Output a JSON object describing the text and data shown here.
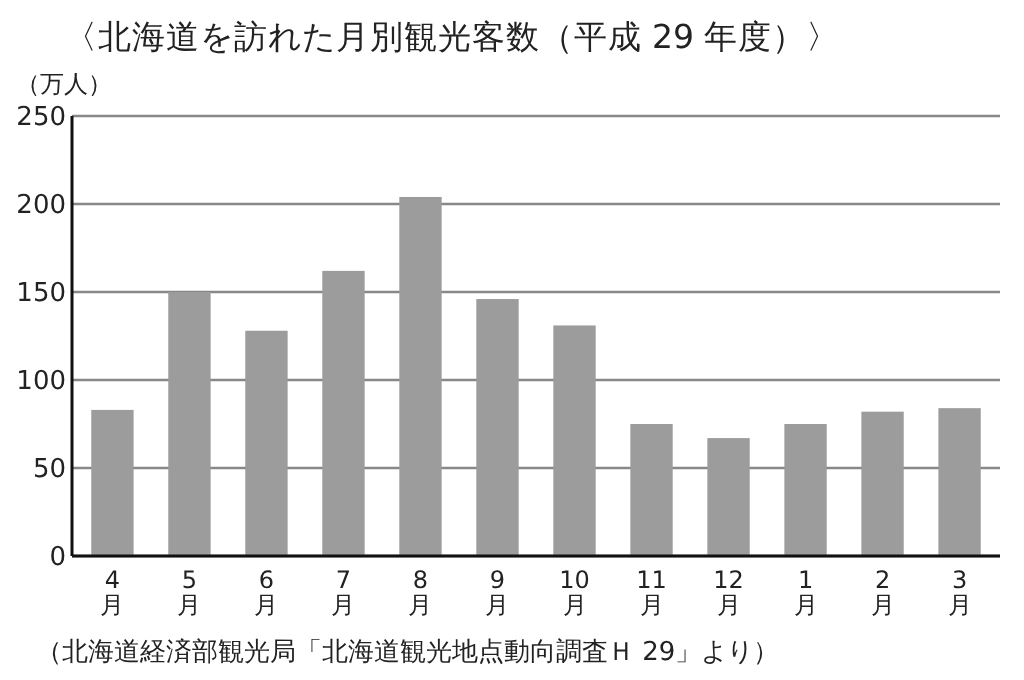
{
  "chart_data": {
    "type": "bar",
    "title": "〈北海道を訪れた月別観光客数（平成 29 年度）〉",
    "ylabel": "（万人）",
    "categories": [
      "4月",
      "5月",
      "6月",
      "7月",
      "8月",
      "9月",
      "10月",
      "11月",
      "12月",
      "1月",
      "2月",
      "3月"
    ],
    "values": [
      83,
      150,
      128,
      162,
      204,
      146,
      131,
      75,
      67,
      75,
      82,
      84
    ],
    "color": "#9c9c9c",
    "ylim": [
      0,
      250
    ],
    "yticks": [
      0,
      50,
      100,
      150,
      200,
      250
    ],
    "grid": "y",
    "annotations": [
      "（北海道経済部観光局「北海道観光地点動向調査Ｈ 29」より）"
    ]
  }
}
